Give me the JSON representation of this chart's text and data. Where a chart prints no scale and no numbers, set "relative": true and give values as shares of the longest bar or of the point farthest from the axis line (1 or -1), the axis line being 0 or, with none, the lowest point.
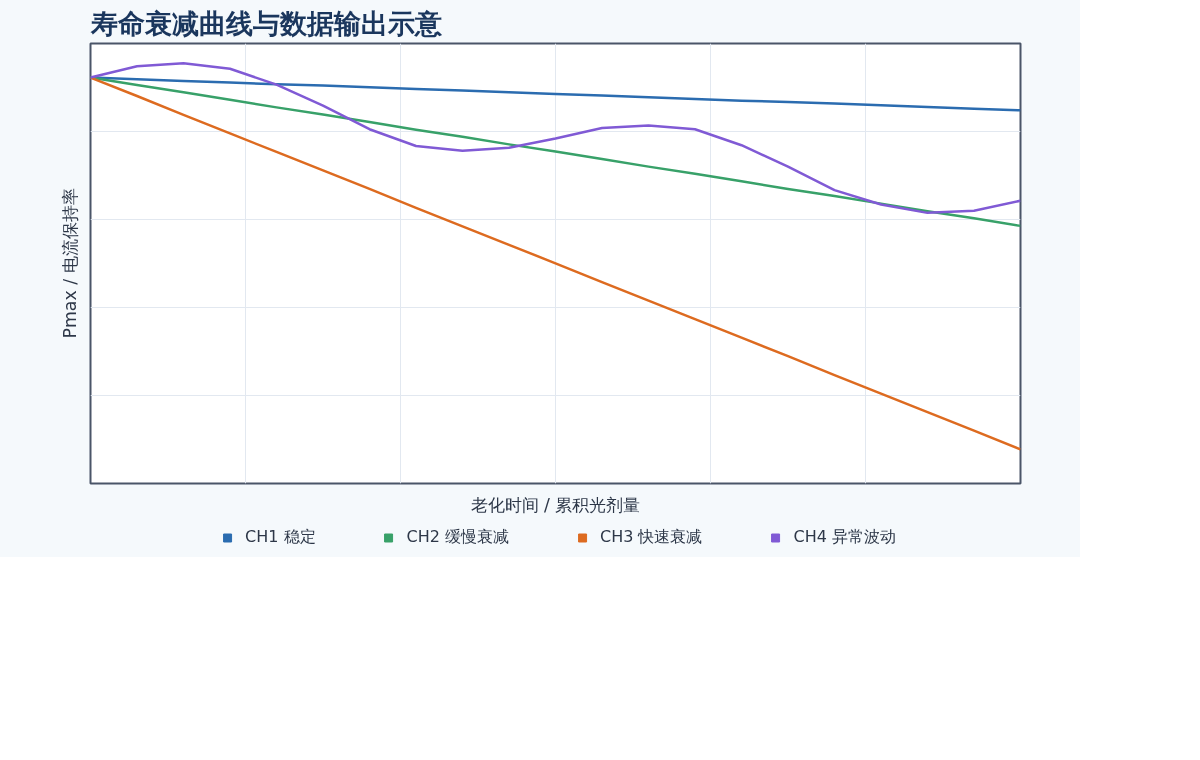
{
  "chart_data": {
    "type": "line",
    "title": "寿命衰减曲线与数据输出示意",
    "xlabel": "老化时间 / 累积光剂量",
    "ylabel": "Pmax / 电流保持率",
    "relative": true,
    "grid": true,
    "legend": "bottom",
    "tick_labels": false,
    "marker": "none",
    "line_style": "solid",
    "categories": [
      null,
      null,
      null,
      null,
      null,
      null,
      null,
      null,
      null,
      null,
      null,
      null,
      null,
      null,
      null,
      null,
      null,
      null,
      null,
      null,
      null
    ],
    "series": [
      {
        "name": "CH1 稳定",
        "color": "#2b6cb0",
        "values": [
          0.966,
          0.962,
          0.958,
          0.954,
          0.95,
          0.947,
          0.943,
          0.939,
          0.935,
          0.931,
          0.927,
          0.923,
          0.919,
          0.915,
          0.911,
          0.908,
          0.904,
          0.9,
          0.896,
          0.892,
          0.888
        ]
      },
      {
        "name": "CH2 缓慢衰减",
        "color": "#38a169",
        "values": [
          0.966,
          0.948,
          0.931,
          0.913,
          0.895,
          0.878,
          0.86,
          0.842,
          0.825,
          0.807,
          0.79,
          0.772,
          0.754,
          0.737,
          0.719,
          0.701,
          0.684,
          0.666,
          0.648,
          0.631,
          0.613
        ]
      },
      {
        "name": "CH3 快速衰减",
        "color": "#dd6b20",
        "values": [
          0.966,
          0.922,
          0.877,
          0.833,
          0.789,
          0.745,
          0.701,
          0.656,
          0.612,
          0.568,
          0.524,
          0.479,
          0.435,
          0.391,
          0.347,
          0.303,
          0.258,
          0.214,
          0.17,
          0.126,
          0.081
        ]
      },
      {
        "name": "CH4 异常波动",
        "color": "#805ad5",
        "values": [
          0.966,
          0.993,
          1.0,
          0.987,
          0.949,
          0.899,
          0.843,
          0.803,
          0.792,
          0.799,
          0.821,
          0.846,
          0.852,
          0.843,
          0.805,
          0.754,
          0.698,
          0.664,
          0.644,
          0.649,
          0.673
        ]
      }
    ]
  }
}
